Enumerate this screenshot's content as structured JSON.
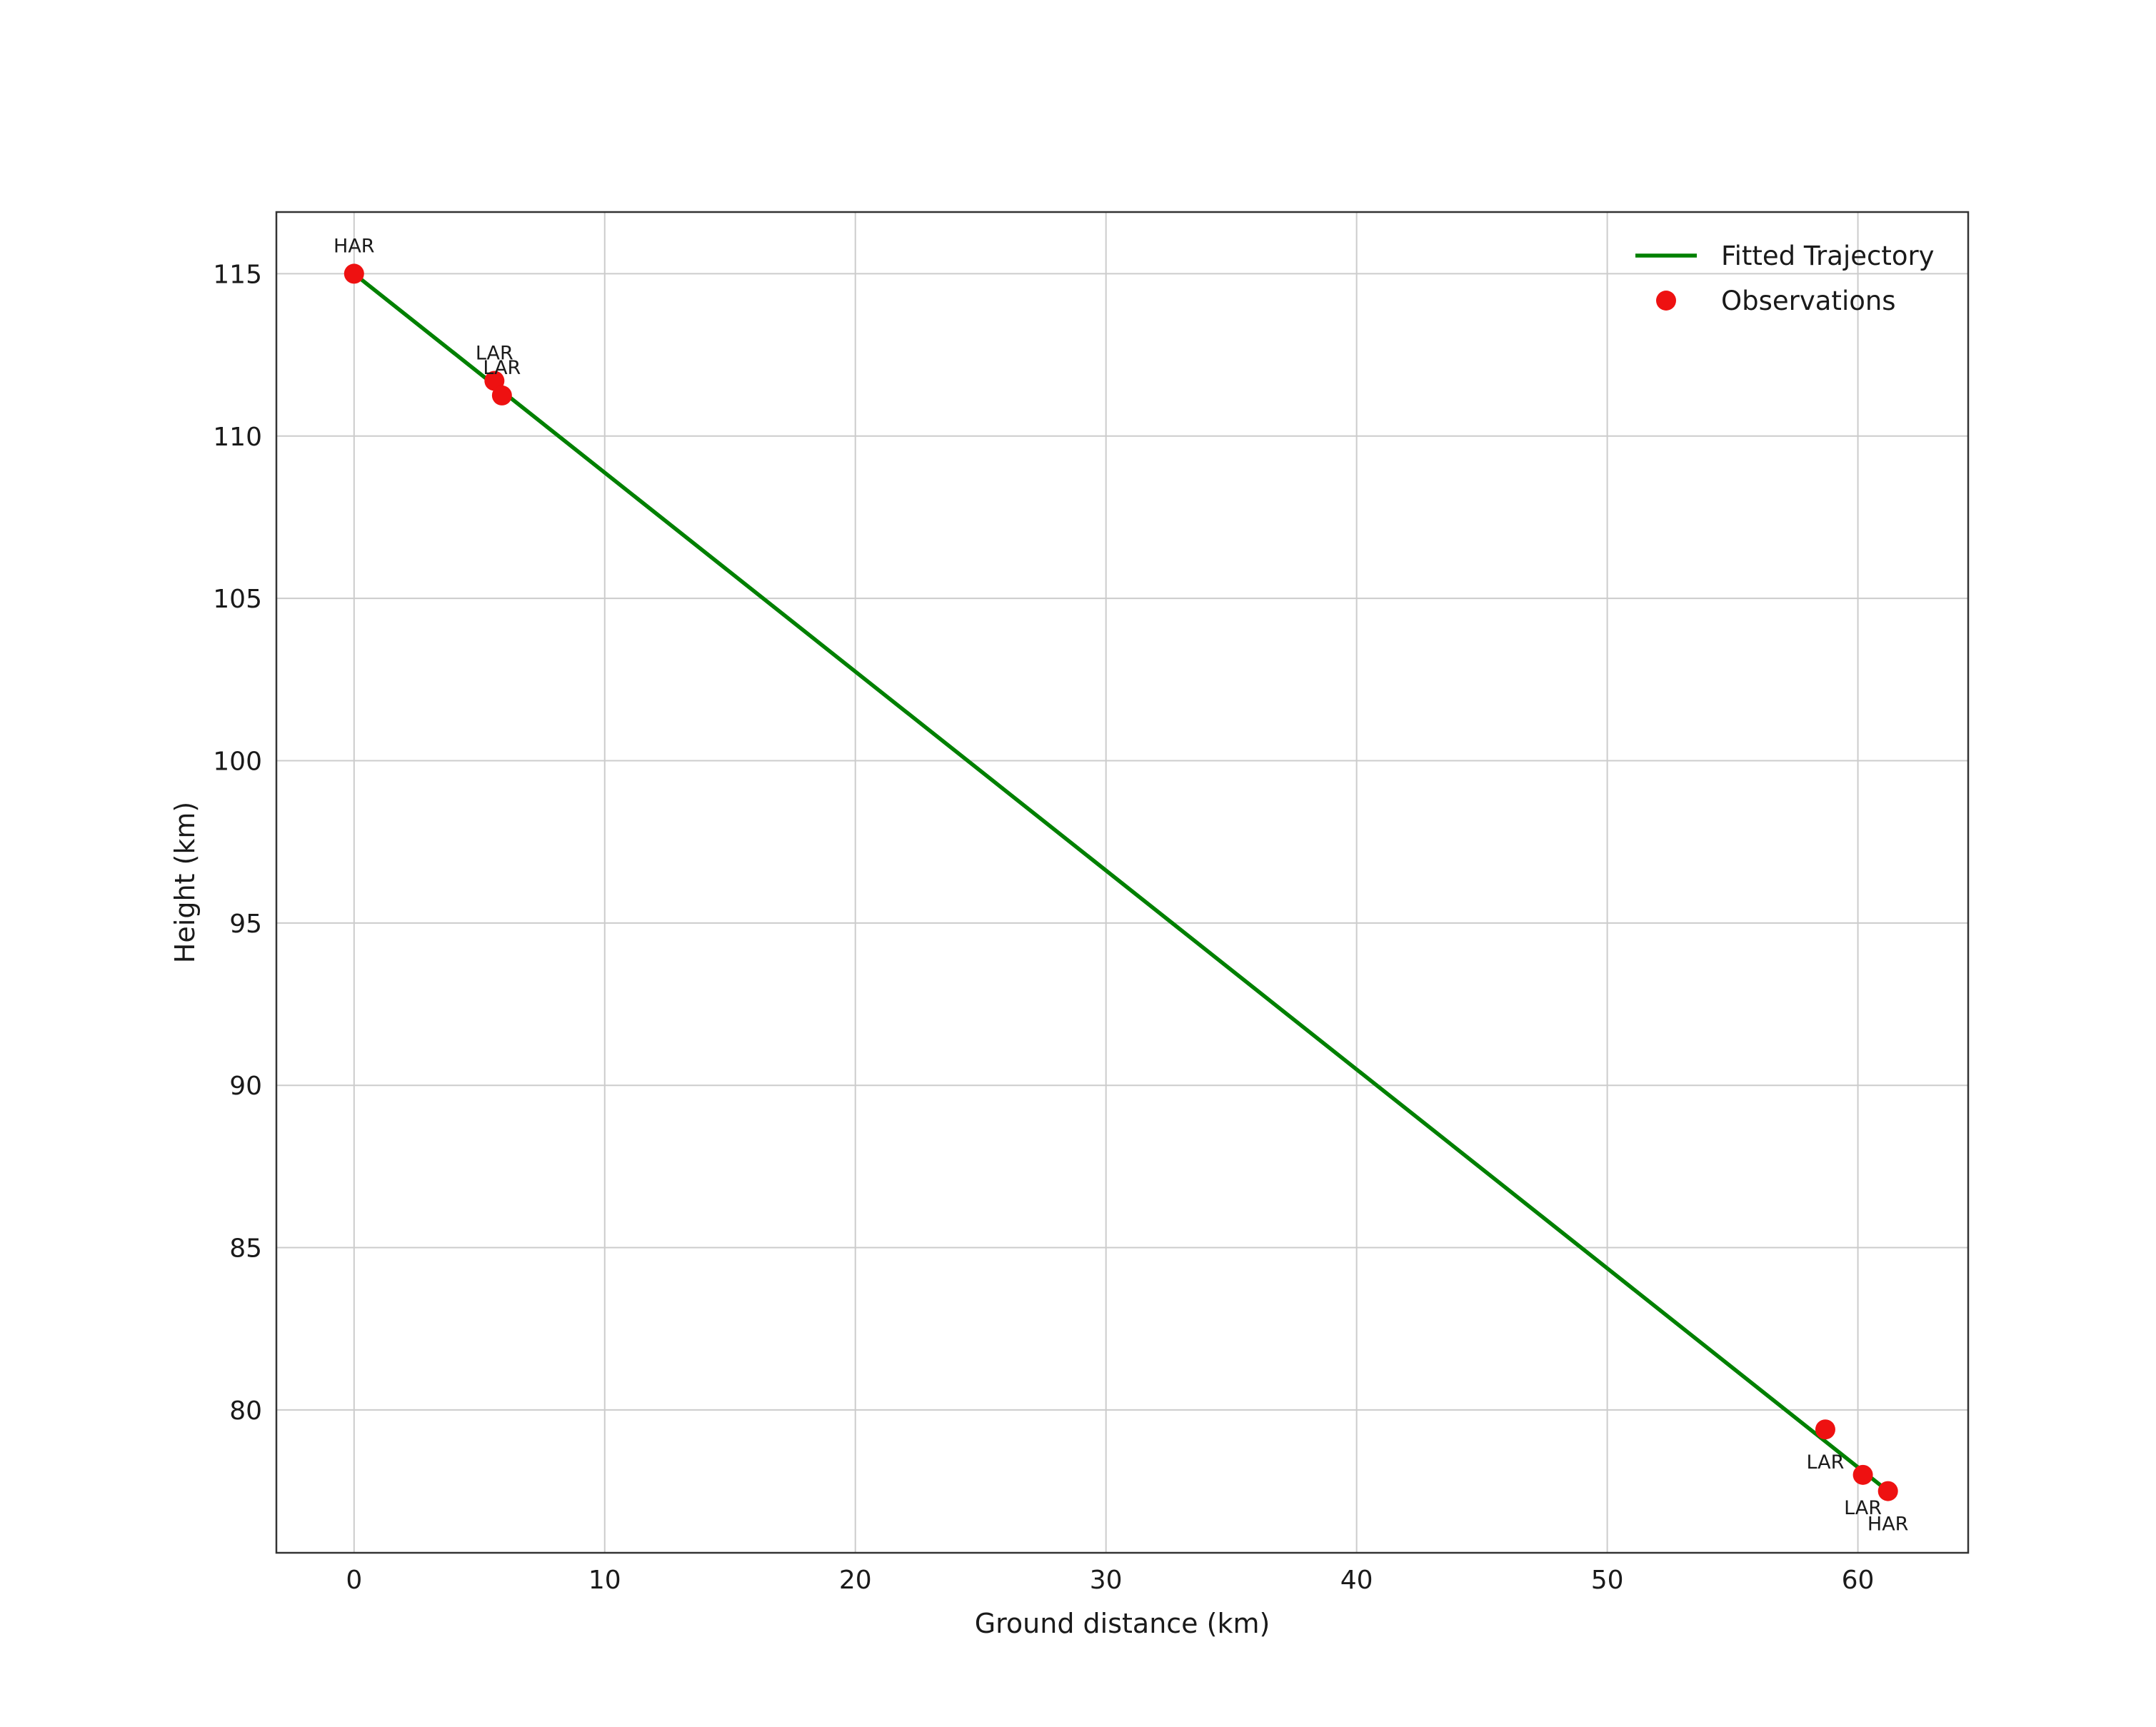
{
  "chart_data": {
    "type": "scatter",
    "title": "",
    "xlabel": "Ground distance (km)",
    "ylabel": "Height (km)",
    "xlim": [
      -3.1,
      64.4
    ],
    "ylim": [
      75.6,
      116.9
    ],
    "x_ticks": [
      0,
      10,
      20,
      30,
      40,
      50,
      60
    ],
    "y_ticks": [
      80,
      85,
      90,
      95,
      100,
      105,
      110,
      115
    ],
    "grid": true,
    "legend": {
      "position": "upper right",
      "entries": [
        {
          "label": "Fitted Trajectory",
          "marker": "line",
          "color": "#008000"
        },
        {
          "label": "Observations",
          "marker": "dot",
          "color": "#ee1111"
        }
      ]
    },
    "fitted_line": {
      "name": "Fitted Trajectory",
      "color": "#008000",
      "x": [
        0,
        61.2
      ],
      "y": [
        115.0,
        77.5
      ]
    },
    "observations": {
      "name": "Observations",
      "color": "#ee1111",
      "points": [
        {
          "label": "HAR",
          "x": 0.0,
          "y": 115.0,
          "label_pos": "above"
        },
        {
          "label": "LAR",
          "x": 5.6,
          "y": 111.7,
          "label_pos": "above"
        },
        {
          "label": "LAR",
          "x": 5.9,
          "y": 111.25,
          "label_pos": "above"
        },
        {
          "label": "LAR",
          "x": 58.7,
          "y": 79.4,
          "label_pos": "below"
        },
        {
          "label": "LAR",
          "x": 60.2,
          "y": 78.0,
          "label_pos": "below"
        },
        {
          "label": "HAR",
          "x": 61.2,
          "y": 77.5,
          "label_pos": "below"
        }
      ]
    },
    "colors": {
      "grid": "#cccccc",
      "frame": "#333333",
      "text": "#1a1a1a",
      "background": "#ffffff"
    }
  }
}
